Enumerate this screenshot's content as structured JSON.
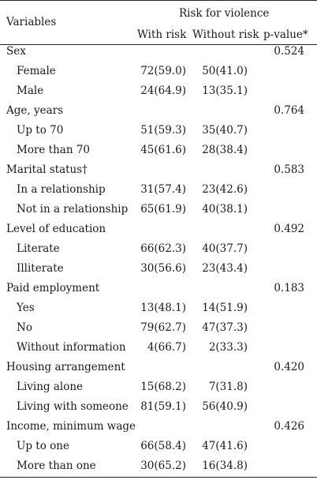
{
  "header": {
    "variables": "Variables",
    "group": "Risk for violence",
    "with_risk": "With risk",
    "without_risk": "Without risk",
    "p_value": "p-value*"
  },
  "rows": [
    {
      "label": "Sex",
      "with": "",
      "without": "",
      "p": "0.524",
      "indent": false
    },
    {
      "label": "Female",
      "with": "72(59.0)",
      "without": "50(41.0)",
      "p": "",
      "indent": true
    },
    {
      "label": "Male",
      "with": "24(64.9)",
      "without": "13(35.1)",
      "p": "",
      "indent": true
    },
    {
      "label": "Age, years",
      "with": "",
      "without": "",
      "p": "0.764",
      "indent": false
    },
    {
      "label": "Up to 70",
      "with": "51(59.3)",
      "without": "35(40.7)",
      "p": "",
      "indent": true
    },
    {
      "label": "More than 70",
      "with": "45(61.6)",
      "without": "28(38.4)",
      "p": "",
      "indent": true
    },
    {
      "label": "Marital status†",
      "with": "",
      "without": "",
      "p": "0.583",
      "indent": false
    },
    {
      "label": "In a relationship",
      "with": "31(57.4)",
      "without": "23(42.6)",
      "p": "",
      "indent": true
    },
    {
      "label": "Not in a relationship",
      "with": "65(61.9)",
      "without": "40(38.1)",
      "p": "",
      "indent": true
    },
    {
      "label": "Level of education",
      "with": "",
      "without": "",
      "p": "0.492",
      "indent": false
    },
    {
      "label": "Literate",
      "with": "66(62.3)",
      "without": "40(37.7)",
      "p": "",
      "indent": true
    },
    {
      "label": "Illiterate",
      "with": "30(56.6)",
      "without": "23(43.4)",
      "p": "",
      "indent": true
    },
    {
      "label": "Paid employment",
      "with": "",
      "without": "",
      "p": "0.183",
      "indent": false
    },
    {
      "label": "Yes",
      "with": "13(48.1)",
      "without": "14(51.9)",
      "p": "",
      "indent": true
    },
    {
      "label": "No",
      "with": "79(62.7)",
      "without": "47(37.3)",
      "p": "",
      "indent": true
    },
    {
      "label": "Without information",
      "with": "4(66.7)",
      "without": "2(33.3)",
      "p": "",
      "indent": true
    },
    {
      "label": "Housing arrangement",
      "with": "",
      "without": "",
      "p": "0.420",
      "indent": false
    },
    {
      "label": "Living alone",
      "with": "15(68.2)",
      "without": "7(31.8)",
      "p": "",
      "indent": true
    },
    {
      "label": "Living with someone",
      "with": "81(59.1)",
      "without": "56(40.9)",
      "p": "",
      "indent": true
    },
    {
      "label": "Income, minimum wage",
      "with": "",
      "without": "",
      "p": "0.426",
      "indent": false
    },
    {
      "label": "Up to one",
      "with": "66(58.4)",
      "without": "47(41.6)",
      "p": "",
      "indent": true
    },
    {
      "label": "More than one",
      "with": "30(65.2)",
      "without": "16(34.8)",
      "p": "",
      "indent": true
    }
  ]
}
